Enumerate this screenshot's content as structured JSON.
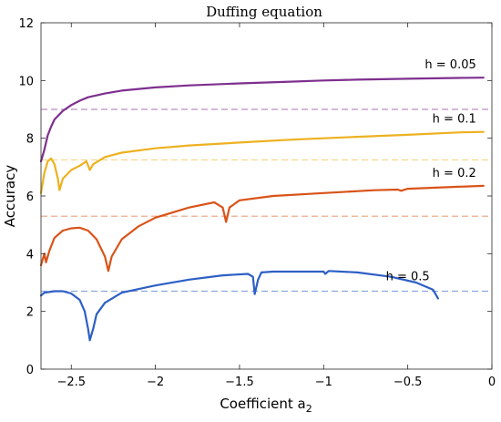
{
  "chart_data": {
    "type": "line",
    "title": "Duffing equation",
    "xlabel": "Coefficient a",
    "xlabel_subscript": "2",
    "ylabel": "Accuracy",
    "xlim": [
      -2.68,
      0
    ],
    "ylim": [
      0,
      12
    ],
    "xticks": [
      -2.5,
      -2,
      -1.5,
      -1,
      -0.5,
      0
    ],
    "xtick_labels": [
      "−2.5",
      "−2",
      "−1.5",
      "−1",
      "−0.5",
      "0"
    ],
    "yticks": [
      0,
      2,
      4,
      6,
      8,
      10,
      12
    ],
    "ytick_labels": [
      "0",
      "2",
      "4",
      "6",
      "8",
      "10",
      "12"
    ],
    "grid": false,
    "series": [
      {
        "name": "h = 0.05",
        "color": "#7e2f8e",
        "reference_level": 9.0,
        "points": [
          [
            -2.68,
            7.2
          ],
          [
            -2.66,
            7.6
          ],
          [
            -2.64,
            8.1
          ],
          [
            -2.62,
            8.4
          ],
          [
            -2.6,
            8.65
          ],
          [
            -2.55,
            8.95
          ],
          [
            -2.5,
            9.15
          ],
          [
            -2.45,
            9.3
          ],
          [
            -2.4,
            9.42
          ],
          [
            -2.3,
            9.55
          ],
          [
            -2.2,
            9.65
          ],
          [
            -2.0,
            9.76
          ],
          [
            -1.8,
            9.83
          ],
          [
            -1.5,
            9.9
          ],
          [
            -1.2,
            9.96
          ],
          [
            -1.0,
            10.0
          ],
          [
            -0.8,
            10.03
          ],
          [
            -0.5,
            10.06
          ],
          [
            -0.2,
            10.09
          ],
          [
            -0.05,
            10.1
          ]
        ]
      },
      {
        "name": "h = 0.1",
        "color": "#edb120",
        "reference_level": 7.25,
        "points": [
          [
            -2.68,
            6.1
          ],
          [
            -2.66,
            6.8
          ],
          [
            -2.64,
            7.2
          ],
          [
            -2.62,
            7.3
          ],
          [
            -2.6,
            7.1
          ],
          [
            -2.58,
            6.6
          ],
          [
            -2.57,
            6.2
          ],
          [
            -2.55,
            6.6
          ],
          [
            -2.5,
            6.9
          ],
          [
            -2.45,
            7.05
          ],
          [
            -2.41,
            7.2
          ],
          [
            -2.39,
            6.9
          ],
          [
            -2.37,
            7.1
          ],
          [
            -2.3,
            7.35
          ],
          [
            -2.2,
            7.5
          ],
          [
            -2.0,
            7.65
          ],
          [
            -1.8,
            7.75
          ],
          [
            -1.5,
            7.85
          ],
          [
            -1.2,
            7.95
          ],
          [
            -1.0,
            8.0
          ],
          [
            -0.8,
            8.05
          ],
          [
            -0.5,
            8.12
          ],
          [
            -0.2,
            8.2
          ],
          [
            -0.05,
            8.22
          ]
        ]
      },
      {
        "name": "h = 0.2",
        "color": "#d95319",
        "reference_level": 5.3,
        "points": [
          [
            -2.68,
            3.6
          ],
          [
            -2.66,
            4.0
          ],
          [
            -2.65,
            3.7
          ],
          [
            -2.63,
            4.1
          ],
          [
            -2.6,
            4.55
          ],
          [
            -2.55,
            4.8
          ],
          [
            -2.5,
            4.88
          ],
          [
            -2.45,
            4.9
          ],
          [
            -2.4,
            4.8
          ],
          [
            -2.35,
            4.5
          ],
          [
            -2.3,
            3.9
          ],
          [
            -2.28,
            3.4
          ],
          [
            -2.26,
            3.9
          ],
          [
            -2.2,
            4.5
          ],
          [
            -2.1,
            4.95
          ],
          [
            -2.0,
            5.25
          ],
          [
            -1.8,
            5.6
          ],
          [
            -1.65,
            5.78
          ],
          [
            -1.6,
            5.6
          ],
          [
            -1.58,
            5.1
          ],
          [
            -1.56,
            5.6
          ],
          [
            -1.5,
            5.85
          ],
          [
            -1.3,
            6.0
          ],
          [
            -1.0,
            6.1
          ],
          [
            -0.7,
            6.2
          ],
          [
            -0.56,
            6.22
          ],
          [
            -0.54,
            6.18
          ],
          [
            -0.5,
            6.25
          ],
          [
            -0.2,
            6.32
          ],
          [
            -0.05,
            6.35
          ]
        ]
      },
      {
        "name": "h = 0.5",
        "color": "#2d5fc4",
        "reference_level": 2.7,
        "points": [
          [
            -2.68,
            2.55
          ],
          [
            -2.66,
            2.65
          ],
          [
            -2.6,
            2.7
          ],
          [
            -2.55,
            2.7
          ],
          [
            -2.5,
            2.62
          ],
          [
            -2.45,
            2.4
          ],
          [
            -2.42,
            2.0
          ],
          [
            -2.4,
            1.4
          ],
          [
            -2.39,
            1.0
          ],
          [
            -2.37,
            1.4
          ],
          [
            -2.35,
            1.9
          ],
          [
            -2.3,
            2.3
          ],
          [
            -2.2,
            2.65
          ],
          [
            -2.0,
            2.9
          ],
          [
            -1.8,
            3.1
          ],
          [
            -1.6,
            3.25
          ],
          [
            -1.45,
            3.3
          ],
          [
            -1.42,
            3.2
          ],
          [
            -1.41,
            2.6
          ],
          [
            -1.39,
            3.1
          ],
          [
            -1.37,
            3.35
          ],
          [
            -1.3,
            3.38
          ],
          [
            -1.1,
            3.38
          ],
          [
            -1.0,
            3.38
          ],
          [
            -0.99,
            3.3
          ],
          [
            -0.97,
            3.4
          ],
          [
            -0.8,
            3.35
          ],
          [
            -0.6,
            3.2
          ],
          [
            -0.45,
            3.0
          ],
          [
            -0.35,
            2.75
          ],
          [
            -0.32,
            2.45
          ]
        ]
      }
    ]
  }
}
